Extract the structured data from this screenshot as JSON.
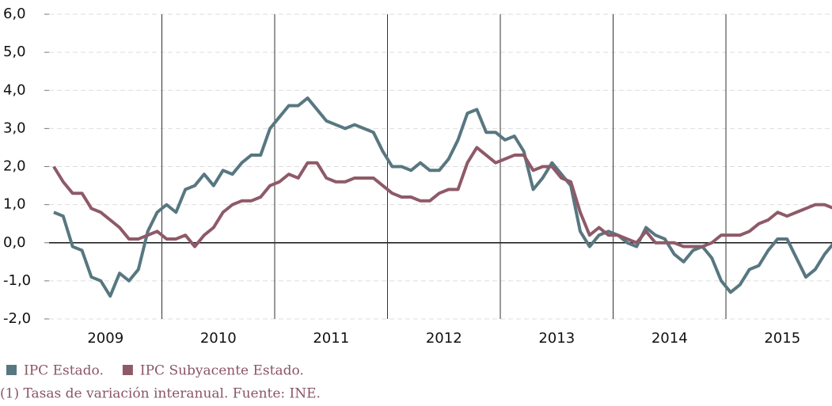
{
  "chart_data": {
    "type": "line",
    "categories": [
      null,
      null,
      null,
      null,
      null,
      "2009",
      null,
      null,
      null,
      null,
      null,
      null,
      null,
      null,
      null,
      null,
      null,
      "2010",
      null,
      null,
      null,
      null,
      null,
      null,
      null,
      null,
      null,
      null,
      null,
      "2011",
      null,
      null,
      null,
      null,
      null,
      null,
      null,
      null,
      null,
      null,
      null,
      "2012",
      null,
      null,
      null,
      null,
      null,
      null,
      null,
      null,
      null,
      null,
      null,
      "2013",
      null,
      null,
      null,
      null,
      null,
      null,
      null,
      null,
      null,
      null,
      null,
      "2014",
      null,
      null,
      null,
      null,
      null,
      null,
      null,
      null,
      null,
      null,
      null,
      "2015",
      null,
      null,
      null,
      null,
      null,
      null
    ],
    "series": [
      {
        "name": "IPC Estado.",
        "color": "#587780",
        "values": [
          0.8,
          0.7,
          -0.1,
          -0.2,
          -0.9,
          -1.0,
          -1.4,
          -0.8,
          -1.0,
          -0.7,
          0.3,
          0.8,
          1.0,
          0.8,
          1.4,
          1.5,
          1.8,
          1.5,
          1.9,
          1.8,
          2.1,
          2.3,
          2.3,
          3.0,
          3.3,
          3.6,
          3.6,
          3.8,
          3.5,
          3.2,
          3.1,
          3.0,
          3.1,
          3.0,
          2.9,
          2.4,
          2.0,
          2.0,
          1.9,
          2.1,
          1.9,
          1.9,
          2.2,
          2.7,
          3.4,
          3.5,
          2.9,
          2.9,
          2.7,
          2.8,
          2.4,
          1.4,
          1.7,
          2.1,
          1.8,
          1.5,
          0.3,
          -0.1,
          0.2,
          0.3,
          0.2,
          0.0,
          -0.1,
          0.4,
          0.2,
          0.1,
          -0.3,
          -0.5,
          -0.2,
          -0.1,
          -0.4,
          -1.0,
          -1.3,
          -1.1,
          -0.7,
          -0.6,
          -0.2,
          0.1,
          0.1,
          -0.4,
          -0.9,
          -0.7,
          -0.3,
          0.0
        ]
      },
      {
        "name": "IPC Subyacente Estado.",
        "color": "#8e5a68",
        "values": [
          2.0,
          1.6,
          1.3,
          1.3,
          0.9,
          0.8,
          0.6,
          0.4,
          0.1,
          0.1,
          0.2,
          0.3,
          0.1,
          0.1,
          0.2,
          -0.1,
          0.2,
          0.4,
          0.8,
          1.0,
          1.1,
          1.1,
          1.2,
          1.5,
          1.6,
          1.8,
          1.7,
          2.1,
          2.1,
          1.7,
          1.6,
          1.6,
          1.7,
          1.7,
          1.7,
          1.5,
          1.3,
          1.2,
          1.2,
          1.1,
          1.1,
          1.3,
          1.4,
          1.4,
          2.1,
          2.5,
          2.3,
          2.1,
          2.2,
          2.3,
          2.3,
          1.9,
          2.0,
          2.0,
          1.7,
          1.6,
          0.8,
          0.2,
          0.4,
          0.2,
          0.2,
          0.1,
          0.0,
          0.3,
          0.0,
          0.0,
          0.0,
          -0.1,
          -0.1,
          -0.1,
          0.0,
          0.2,
          0.2,
          0.2,
          0.3,
          0.5,
          0.6,
          0.8,
          0.7,
          0.8,
          0.9,
          1.0,
          1.0,
          0.9
        ]
      }
    ],
    "ylim": [
      -2,
      6
    ],
    "yticks": [
      {
        "value": -2,
        "label": "-2,0"
      },
      {
        "value": -1,
        "label": "-1,0"
      },
      {
        "value": 0,
        "label": "0,0"
      },
      {
        "value": 1,
        "label": "1,0"
      },
      {
        "value": 2,
        "label": "2,0"
      },
      {
        "value": 3,
        "label": "3,0"
      },
      {
        "value": 4,
        "label": "4,0"
      },
      {
        "value": 5,
        "label": "5,0"
      },
      {
        "value": 6,
        "label": "6,0"
      }
    ],
    "grid": true,
    "legend": "bottom-left",
    "footnote": "(1) Tasas de variación interanual. Fuente: INE."
  }
}
